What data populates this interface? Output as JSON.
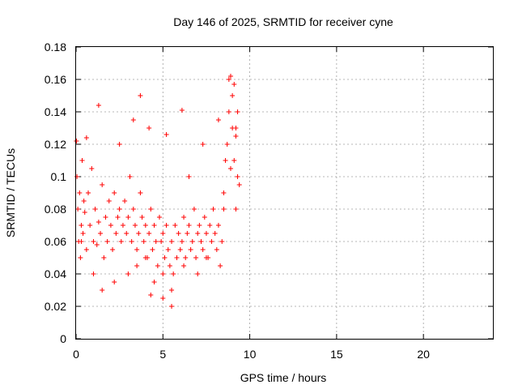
{
  "chart_data": {
    "type": "scatter",
    "title": "Day 146 of 2025, SRMTID for receiver cyne",
    "xlabel": "GPS time / hours",
    "ylabel": "SRMTID / TECUs",
    "xlim": [
      0,
      24
    ],
    "ylim": [
      0,
      0.18
    ],
    "xticks": [
      0,
      5,
      10,
      15,
      20
    ],
    "xtick_labels": [
      "0",
      "5",
      "10",
      "15",
      "20"
    ],
    "yticks": [
      0,
      0.02,
      0.04,
      0.06,
      0.08,
      0.1,
      0.12,
      0.14,
      0.16,
      0.18
    ],
    "ytick_labels": [
      "0",
      "0.02",
      "0.04",
      "0.06",
      "0.08",
      "0.1",
      "0.12",
      "0.14",
      "0.16",
      "0.18"
    ],
    "grid": true,
    "marker": "plus",
    "color": "#ff0000",
    "series": [
      {
        "name": "",
        "x": [
          0.02,
          0.05,
          0.1,
          0.15,
          0.2,
          0.25,
          0.3,
          0.35,
          0.4,
          0.45,
          0.5,
          0.6,
          0.7,
          0.8,
          0.9,
          1.0,
          1.1,
          1.2,
          1.3,
          1.4,
          1.5,
          1.6,
          1.7,
          1.8,
          1.9,
          2.0,
          2.1,
          2.2,
          2.3,
          2.4,
          2.5,
          2.6,
          2.7,
          2.8,
          2.9,
          3.0,
          3.1,
          3.2,
          3.3,
          3.4,
          3.5,
          3.6,
          3.7,
          3.8,
          3.9,
          4.0,
          4.1,
          4.2,
          4.3,
          4.4,
          4.5,
          4.6,
          4.7,
          4.8,
          4.9,
          5.0,
          5.1,
          5.2,
          5.3,
          5.4,
          5.5,
          5.6,
          5.7,
          5.8,
          5.9,
          6.0,
          6.1,
          6.2,
          6.3,
          6.4,
          6.5,
          6.6,
          6.7,
          6.8,
          6.9,
          7.0,
          7.1,
          7.2,
          7.3,
          7.4,
          7.5,
          7.6,
          7.7,
          7.8,
          7.9,
          8.0,
          8.1,
          8.2,
          8.3,
          8.4,
          8.5,
          8.6,
          8.7,
          8.8,
          8.9,
          9.0,
          9.1,
          9.2,
          9.3,
          9.4,
          0.3,
          1.0,
          1.5,
          2.2,
          3.0,
          3.5,
          4.0,
          4.5,
          5.0,
          5.5,
          6.2,
          7.0,
          7.5,
          8.5,
          8.8,
          9.0,
          9.2,
          0.6,
          1.3,
          2.5,
          3.3,
          4.2,
          5.2,
          6.5,
          7.3,
          8.2,
          9.3,
          3.7,
          6.1,
          5.0,
          5.5,
          4.3,
          8.9,
          9.1,
          9.2
        ],
        "y": [
          0.122,
          0.1,
          0.08,
          0.06,
          0.09,
          0.05,
          0.07,
          0.11,
          0.065,
          0.085,
          0.078,
          0.055,
          0.09,
          0.07,
          0.105,
          0.06,
          0.08,
          0.058,
          0.072,
          0.065,
          0.095,
          0.05,
          0.075,
          0.06,
          0.085,
          0.07,
          0.055,
          0.09,
          0.065,
          0.075,
          0.08,
          0.06,
          0.07,
          0.085,
          0.065,
          0.075,
          0.1,
          0.06,
          0.08,
          0.07,
          0.055,
          0.065,
          0.09,
          0.075,
          0.06,
          0.07,
          0.05,
          0.065,
          0.08,
          0.055,
          0.07,
          0.06,
          0.045,
          0.075,
          0.06,
          0.065,
          0.05,
          0.07,
          0.055,
          0.045,
          0.06,
          0.04,
          0.07,
          0.05,
          0.065,
          0.055,
          0.06,
          0.075,
          0.05,
          0.065,
          0.07,
          0.055,
          0.06,
          0.08,
          0.05,
          0.065,
          0.07,
          0.06,
          0.055,
          0.075,
          0.065,
          0.05,
          0.07,
          0.06,
          0.08,
          0.065,
          0.055,
          0.07,
          0.045,
          0.06,
          0.09,
          0.11,
          0.12,
          0.14,
          0.105,
          0.13,
          0.11,
          0.125,
          0.1,
          0.095,
          0.06,
          0.04,
          0.03,
          0.035,
          0.04,
          0.045,
          0.05,
          0.035,
          0.04,
          0.03,
          0.045,
          0.04,
          0.05,
          0.08,
          0.16,
          0.15,
          0.13,
          0.124,
          0.144,
          0.12,
          0.135,
          0.13,
          0.126,
          0.1,
          0.12,
          0.135,
          0.14,
          0.15,
          0.141,
          0.025,
          0.02,
          0.027,
          0.162,
          0.157,
          0.08
        ]
      }
    ]
  }
}
